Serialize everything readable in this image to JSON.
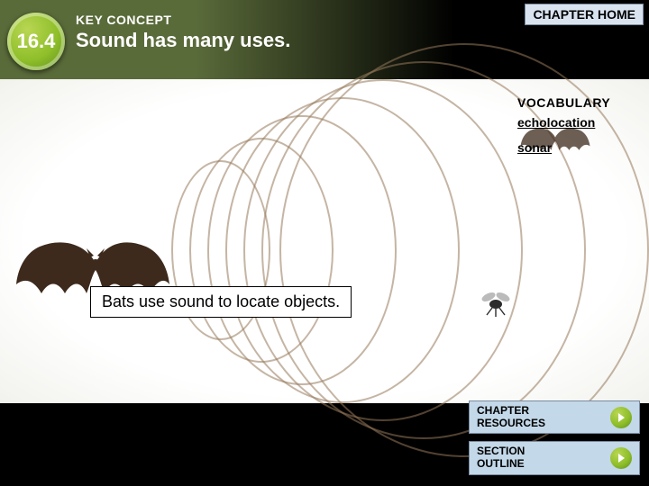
{
  "header": {
    "chapter_number": "16.4",
    "key_concept_label": "KEY CONCEPT",
    "title": "Sound has many uses.",
    "chapter_home_label": "CHAPTER HOME"
  },
  "stage": {
    "caption": "Bats use sound to locate objects.",
    "background_center": "#ffffff",
    "background_edge": "#000000",
    "wave_color": "rgba(150,120,90,0.55)",
    "wave_count": 7,
    "bat_color": "#3d2a1c",
    "insect_color": "#2c2c2c"
  },
  "vocab": {
    "title": "VOCABULARY",
    "items": [
      "echolocation",
      "sonar"
    ]
  },
  "footer": {
    "resources_label": "CHAPTER\nRESOURCES",
    "outline_label": "SECTION\nOUTLINE"
  },
  "colors": {
    "header_bg_left": "#5a6b3a",
    "badge_gradient": [
      "#b9d653",
      "#8fbf2a",
      "#5c8b1b"
    ],
    "button_bg": "#c3d8e9",
    "button_border": "#7a8aa0"
  }
}
